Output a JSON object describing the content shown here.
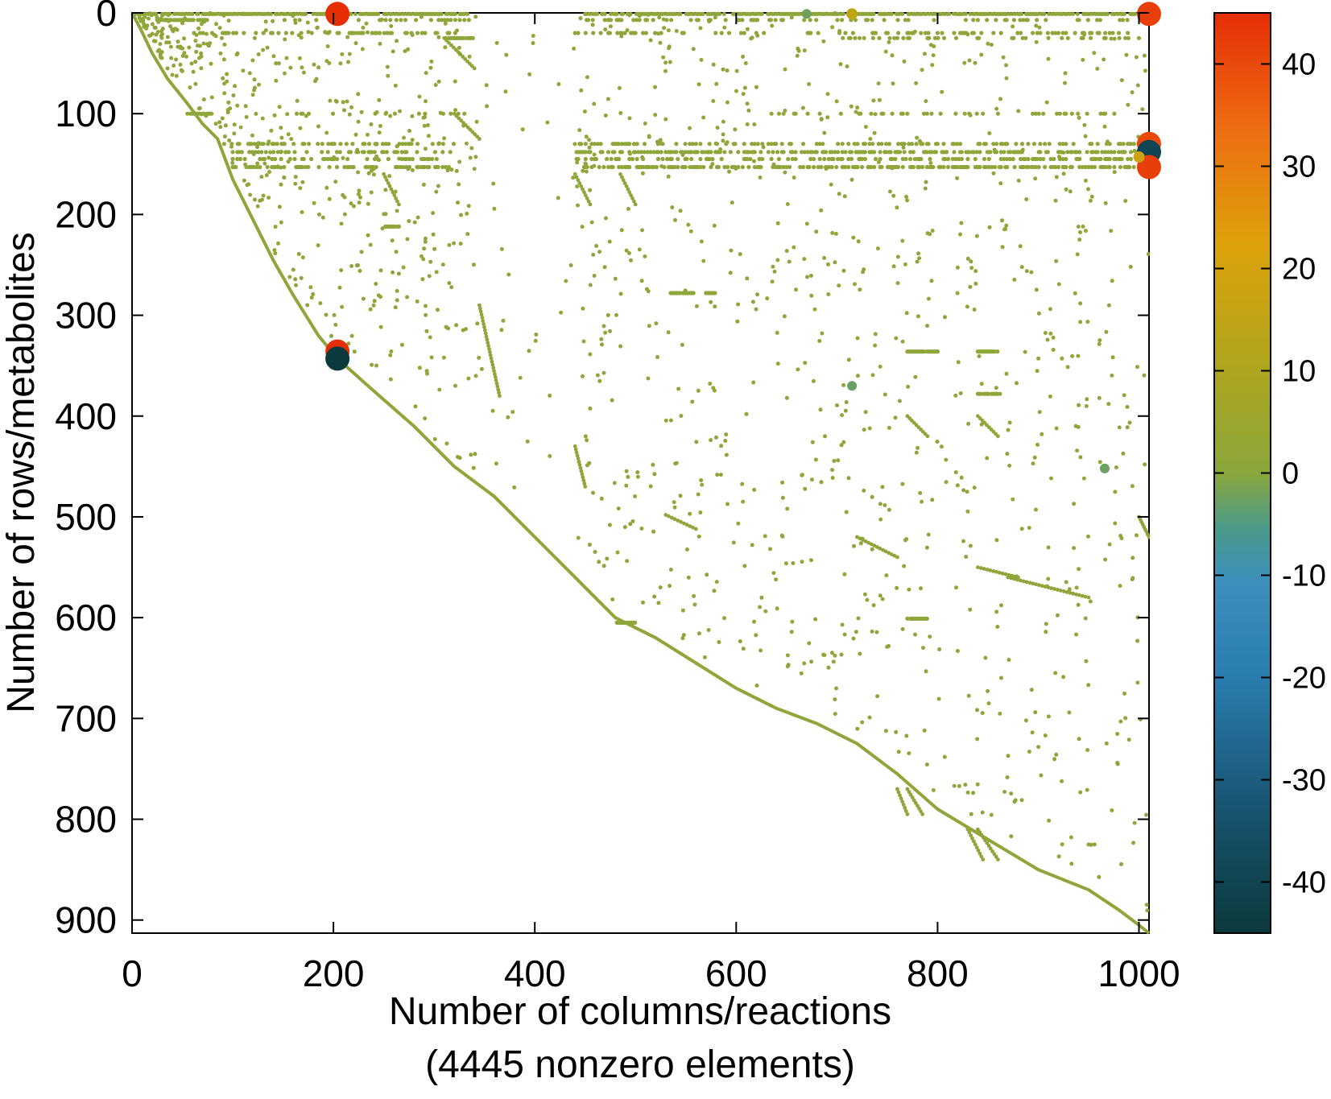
{
  "chart_data": {
    "type": "scatter",
    "title": "",
    "xlabel": "Number of columns/reactions",
    "xlabel_line2": "(4445 nonzero elements)",
    "ylabel": "Number of rows/metabolites",
    "xlim": [
      0,
      1010
    ],
    "ylim": [
      0,
      913
    ],
    "y_inverted": true,
    "grid": false,
    "x_ticks": [
      "0",
      "200",
      "400",
      "600",
      "800",
      "1000"
    ],
    "y_ticks": [
      "0",
      "100",
      "200",
      "300",
      "400",
      "500",
      "600",
      "700",
      "800",
      "900"
    ],
    "colorbar": {
      "range": [
        -45,
        45
      ],
      "ticks": [
        "40",
        "30",
        "20",
        "10",
        "0",
        "-10",
        "-20",
        "-30",
        "-40"
      ],
      "placement": "right"
    },
    "colors": {
      "default_marker": "#8fa63a",
      "diagonal": "#8fa63a"
    },
    "large_points": [
      {
        "x": 204,
        "y": 1,
        "v": 45
      },
      {
        "x": 1010,
        "y": 1,
        "v": 42
      },
      {
        "x": 1010,
        "y": 130,
        "v": 40
      },
      {
        "x": 1010,
        "y": 138,
        "v": -40
      },
      {
        "x": 1010,
        "y": 153,
        "v": 42
      },
      {
        "x": 204,
        "y": 336,
        "v": 45
      },
      {
        "x": 204,
        "y": 343,
        "v": -45
      },
      {
        "x": 715,
        "y": 370,
        "v": -6
      },
      {
        "x": 966,
        "y": 452,
        "v": -6
      },
      {
        "x": 715,
        "y": 1,
        "v": 14
      },
      {
        "x": 1000,
        "y": 143,
        "v": 18
      },
      {
        "x": 670,
        "y": 1,
        "v": -5
      }
    ],
    "diagonal_path": [
      [
        0,
        0
      ],
      [
        8,
        15
      ],
      [
        20,
        40
      ],
      [
        35,
        65
      ],
      [
        55,
        90
      ],
      [
        70,
        110
      ],
      [
        85,
        125
      ],
      [
        100,
        165
      ],
      [
        120,
        205
      ],
      [
        140,
        245
      ],
      [
        160,
        280
      ],
      [
        185,
        320
      ],
      [
        204,
        343
      ],
      [
        240,
        375
      ],
      [
        280,
        410
      ],
      [
        320,
        450
      ],
      [
        360,
        480
      ],
      [
        400,
        520
      ],
      [
        440,
        560
      ],
      [
        480,
        600
      ],
      [
        520,
        620
      ],
      [
        560,
        645
      ],
      [
        600,
        670
      ],
      [
        640,
        690
      ],
      [
        680,
        705
      ],
      [
        720,
        725
      ],
      [
        760,
        755
      ],
      [
        800,
        790
      ],
      [
        850,
        820
      ],
      [
        900,
        850
      ],
      [
        950,
        870
      ],
      [
        980,
        890
      ],
      [
        1000,
        905
      ],
      [
        1010,
        913
      ]
    ],
    "horizontal_bands": [
      {
        "y": 1,
        "x1": 0,
        "x2": 340,
        "density": 0.7
      },
      {
        "y": 1,
        "x1": 450,
        "x2": 1010,
        "density": 0.7
      },
      {
        "y": 7,
        "x1": 25,
        "x2": 75,
        "density": 0.9
      },
      {
        "y": 7,
        "x1": 150,
        "x2": 340,
        "density": 0.2
      },
      {
        "y": 7,
        "x1": 450,
        "x2": 1000,
        "density": 0.2
      },
      {
        "y": 20,
        "x1": 60,
        "x2": 340,
        "density": 0.2
      },
      {
        "y": 20,
        "x1": 440,
        "x2": 1000,
        "density": 0.2
      },
      {
        "y": 25,
        "x1": 310,
        "x2": 340,
        "density": 0.9
      },
      {
        "y": 25,
        "x1": 700,
        "x2": 1000,
        "density": 0.2
      },
      {
        "y": 100,
        "x1": 55,
        "x2": 80,
        "density": 0.9
      },
      {
        "y": 100,
        "x1": 150,
        "x2": 340,
        "density": 0.1
      },
      {
        "y": 100,
        "x1": 620,
        "x2": 1000,
        "density": 0.15
      },
      {
        "y": 130,
        "x1": 90,
        "x2": 320,
        "density": 0.35
      },
      {
        "y": 130,
        "x1": 440,
        "x2": 1010,
        "density": 0.35
      },
      {
        "y": 138,
        "x1": 100,
        "x2": 320,
        "density": 0.35
      },
      {
        "y": 138,
        "x1": 440,
        "x2": 1010,
        "density": 0.45
      },
      {
        "y": 145,
        "x1": 100,
        "x2": 320,
        "density": 0.25
      },
      {
        "y": 145,
        "x1": 440,
        "x2": 1010,
        "density": 0.3
      },
      {
        "y": 153,
        "x1": 100,
        "x2": 320,
        "density": 0.35
      },
      {
        "y": 153,
        "x1": 440,
        "x2": 1010,
        "density": 0.45
      },
      {
        "y": 212,
        "x1": 250,
        "x2": 265,
        "density": 0.9
      },
      {
        "y": 278,
        "x1": 535,
        "x2": 560,
        "density": 0.9
      },
      {
        "y": 278,
        "x1": 570,
        "x2": 580,
        "density": 0.9
      },
      {
        "y": 336,
        "x1": 770,
        "x2": 800,
        "density": 0.9
      },
      {
        "y": 336,
        "x1": 840,
        "x2": 860,
        "density": 0.9
      },
      {
        "y": 378,
        "x1": 840,
        "x2": 860,
        "density": 0.9
      },
      {
        "y": 601,
        "x1": 770,
        "x2": 790,
        "density": 0.9
      },
      {
        "y": 605,
        "x1": 480,
        "x2": 500,
        "density": 0.9
      }
    ],
    "diagonal_segments": [
      {
        "x1": 310,
        "y1": 25,
        "x2": 340,
        "y2": 55
      },
      {
        "x1": 320,
        "y1": 100,
        "x2": 345,
        "y2": 125
      },
      {
        "x1": 250,
        "y1": 160,
        "x2": 265,
        "y2": 190
      },
      {
        "x1": 440,
        "y1": 160,
        "x2": 455,
        "y2": 190
      },
      {
        "x1": 485,
        "y1": 160,
        "x2": 500,
        "y2": 190
      },
      {
        "x1": 345,
        "y1": 290,
        "x2": 365,
        "y2": 380
      },
      {
        "x1": 440,
        "y1": 430,
        "x2": 450,
        "y2": 470
      },
      {
        "x1": 770,
        "y1": 400,
        "x2": 790,
        "y2": 420
      },
      {
        "x1": 840,
        "y1": 400,
        "x2": 860,
        "y2": 420
      },
      {
        "x1": 530,
        "y1": 498,
        "x2": 560,
        "y2": 512
      },
      {
        "x1": 720,
        "y1": 520,
        "x2": 760,
        "y2": 540
      },
      {
        "x1": 840,
        "y1": 550,
        "x2": 880,
        "y2": 560
      },
      {
        "x1": 870,
        "y1": 560,
        "x2": 950,
        "y2": 580
      },
      {
        "x1": 760,
        "y1": 770,
        "x2": 770,
        "y2": 795
      },
      {
        "x1": 770,
        "y1": 770,
        "x2": 785,
        "y2": 795
      },
      {
        "x1": 830,
        "y1": 810,
        "x2": 845,
        "y2": 840
      },
      {
        "x1": 840,
        "y1": 810,
        "x2": 860,
        "y2": 840
      },
      {
        "x1": 1000,
        "y1": 500,
        "x2": 1010,
        "y2": 520
      }
    ]
  }
}
